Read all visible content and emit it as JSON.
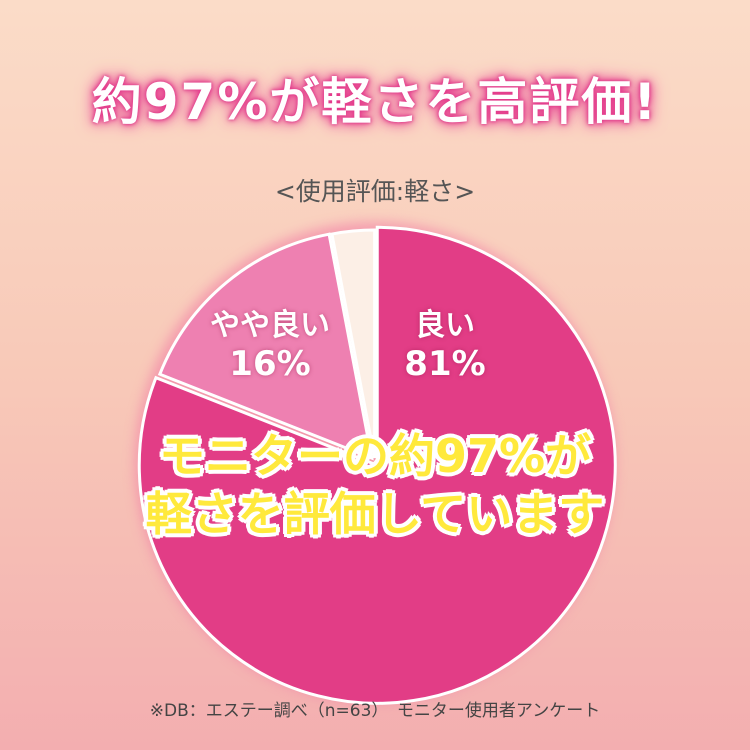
{
  "headline": "約97%が軽さを高評価!",
  "chart_data": {
    "type": "pie",
    "title": "<使用評価:軽さ>",
    "slices": [
      {
        "label": "良い",
        "value": 81,
        "color": "#e23d86"
      },
      {
        "label": "やや良い",
        "value": 16,
        "color": "#ee80b1"
      },
      {
        "label": "",
        "value": 3,
        "color": "#fcefe6"
      }
    ],
    "value_labels": [
      "81%",
      "16%"
    ],
    "start": "top",
    "direction": "clockwise"
  },
  "overlay": {
    "line1": "モニターの約97%が",
    "line2": "軽さを評価しています"
  },
  "footer": "※DB：エステー調べ（n=63）　モニター使用者アンケート"
}
